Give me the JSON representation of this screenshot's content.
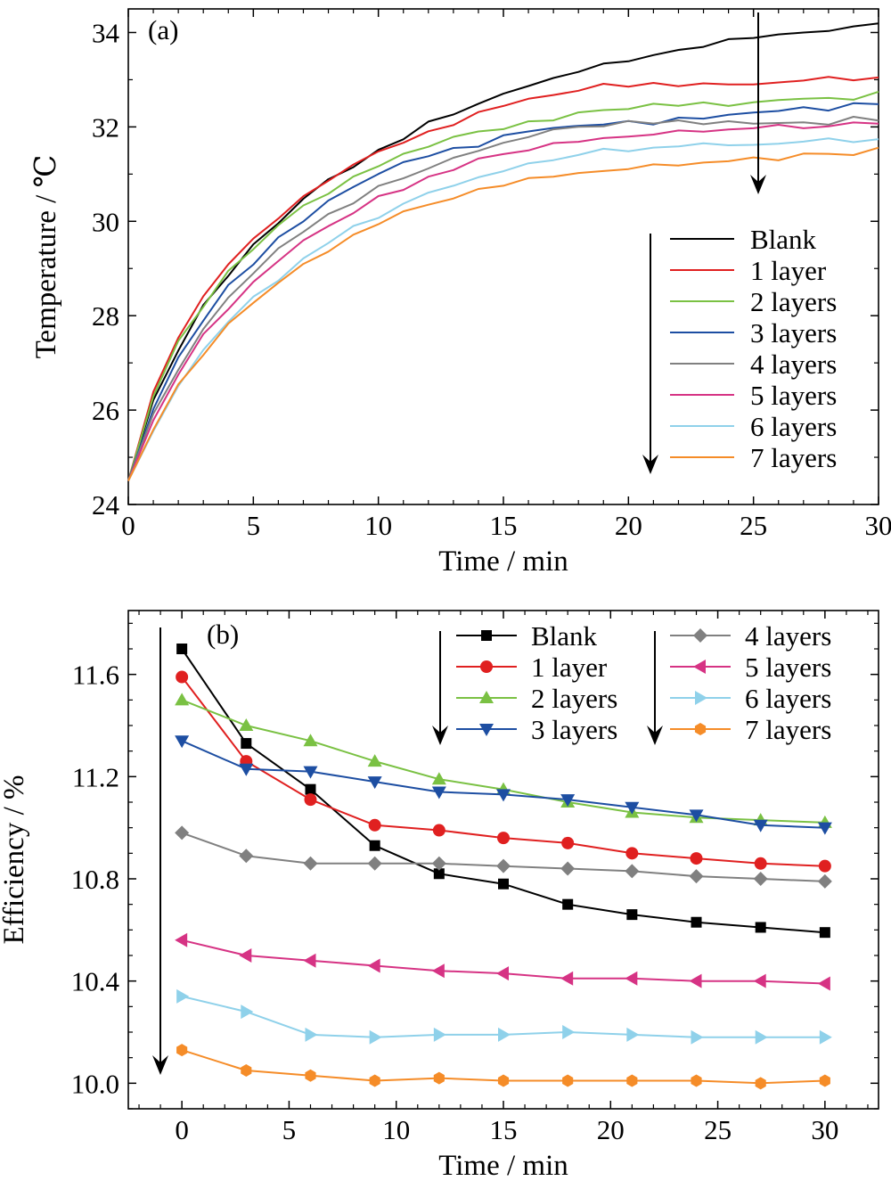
{
  "chart_data": [
    {
      "type": "line",
      "panel_label": "(a)",
      "xlabel": "Time / min",
      "ylabel": "Temperature / ℃",
      "xlim": [
        0,
        30
      ],
      "ylim": [
        24,
        34.5
      ],
      "xticks": [
        0,
        5,
        10,
        15,
        20,
        25,
        30
      ],
      "yticks": [
        24,
        26,
        28,
        30,
        32,
        34
      ],
      "legend_position": "bottom-right",
      "x": [
        0,
        1,
        2,
        3,
        4,
        5,
        6,
        7,
        8,
        9,
        10,
        11,
        12,
        13,
        14,
        15,
        16,
        17,
        18,
        19,
        20,
        21,
        22,
        23,
        24,
        25,
        26,
        27,
        28,
        29,
        30
      ],
      "series": [
        {
          "name": "Blank",
          "color": "#000000",
          "values": [
            24.5,
            26.2,
            27.3,
            28.2,
            28.9,
            29.5,
            30.0,
            30.5,
            30.9,
            31.2,
            31.5,
            31.8,
            32.1,
            32.3,
            32.5,
            32.7,
            32.9,
            33.0,
            33.2,
            33.3,
            33.4,
            33.5,
            33.6,
            33.7,
            33.8,
            33.9,
            33.9,
            34.0,
            34.0,
            34.1,
            34.2
          ]
        },
        {
          "name": "1 layer",
          "color": "#e02020",
          "values": [
            24.5,
            26.4,
            27.5,
            28.4,
            29.1,
            29.6,
            30.1,
            30.5,
            30.9,
            31.2,
            31.5,
            31.7,
            31.9,
            32.1,
            32.3,
            32.5,
            32.6,
            32.7,
            32.8,
            32.9,
            32.9,
            32.9,
            32.9,
            32.9,
            32.9,
            32.9,
            32.9,
            33.0,
            33.0,
            33.0,
            33.0
          ]
        },
        {
          "name": "2 layers",
          "color": "#7ac143",
          "values": [
            24.5,
            26.3,
            27.4,
            28.2,
            28.9,
            29.4,
            29.9,
            30.3,
            30.6,
            30.9,
            31.2,
            31.4,
            31.6,
            31.8,
            31.9,
            32.0,
            32.1,
            32.2,
            32.3,
            32.4,
            32.4,
            32.5,
            32.5,
            32.5,
            32.5,
            32.5,
            32.6,
            32.6,
            32.6,
            32.6,
            32.7
          ]
        },
        {
          "name": "3 layers",
          "color": "#1d4ea2",
          "values": [
            24.5,
            26.0,
            27.1,
            27.9,
            28.6,
            29.1,
            29.6,
            30.0,
            30.4,
            30.7,
            31.0,
            31.2,
            31.4,
            31.5,
            31.6,
            31.8,
            31.9,
            32.0,
            32.0,
            32.1,
            32.1,
            32.1,
            32.2,
            32.2,
            32.3,
            32.3,
            32.4,
            32.4,
            32.4,
            32.5,
            32.5
          ]
        },
        {
          "name": "4 layers",
          "color": "#808080",
          "values": [
            24.5,
            25.9,
            26.9,
            27.7,
            28.4,
            28.9,
            29.4,
            29.8,
            30.1,
            30.4,
            30.7,
            30.9,
            31.1,
            31.3,
            31.5,
            31.6,
            31.8,
            31.9,
            32.0,
            32.0,
            32.1,
            32.1,
            32.1,
            32.1,
            32.1,
            32.1,
            32.1,
            32.1,
            32.1,
            32.2,
            32.2
          ]
        },
        {
          "name": "5 layers",
          "color": "#d63384",
          "values": [
            24.5,
            25.8,
            26.8,
            27.6,
            28.2,
            28.7,
            29.2,
            29.6,
            29.9,
            30.2,
            30.5,
            30.7,
            30.9,
            31.1,
            31.3,
            31.4,
            31.5,
            31.6,
            31.7,
            31.7,
            31.8,
            31.8,
            31.9,
            31.9,
            31.9,
            32.0,
            32.0,
            32.0,
            32.0,
            32.1,
            32.1
          ]
        },
        {
          "name": "6 layers",
          "color": "#8fd1ea",
          "values": [
            24.5,
            25.6,
            26.5,
            27.3,
            27.9,
            28.4,
            28.8,
            29.2,
            29.6,
            29.9,
            30.1,
            30.4,
            30.6,
            30.8,
            30.9,
            31.1,
            31.2,
            31.3,
            31.4,
            31.5,
            31.5,
            31.5,
            31.6,
            31.6,
            31.6,
            31.6,
            31.6,
            31.7,
            31.7,
            31.7,
            31.7
          ]
        },
        {
          "name": "7 layers",
          "color": "#f58c28",
          "values": [
            24.5,
            25.6,
            26.5,
            27.2,
            27.8,
            28.3,
            28.7,
            29.1,
            29.4,
            29.7,
            30.0,
            30.2,
            30.4,
            30.5,
            30.7,
            30.8,
            30.9,
            31.0,
            31.0,
            31.1,
            31.1,
            31.2,
            31.2,
            31.2,
            31.3,
            31.3,
            31.3,
            31.4,
            31.4,
            31.4,
            31.5
          ]
        }
      ]
    },
    {
      "type": "line",
      "panel_label": "(b)",
      "xlabel": "Time / min",
      "ylabel": "Efficiency / %",
      "xlim": [
        -2.5,
        32.5
      ],
      "ylim": [
        9.9,
        11.85
      ],
      "xticks": [
        0,
        5,
        10,
        15,
        20,
        25,
        30
      ],
      "yticks": [
        10.0,
        10.4,
        10.8,
        11.2,
        11.6
      ],
      "ytick_labels": [
        "10.0",
        "10.4",
        "10.8",
        "11.2",
        "11.6"
      ],
      "legend_position": "top-right",
      "x": [
        0,
        3,
        6,
        9,
        12,
        15,
        18,
        21,
        24,
        27,
        30
      ],
      "series": [
        {
          "name": "Blank",
          "color": "#000000",
          "marker": "square",
          "values": [
            11.7,
            11.33,
            11.15,
            10.93,
            10.82,
            10.78,
            10.7,
            10.66,
            10.63,
            10.61,
            10.59
          ]
        },
        {
          "name": "1 layer",
          "color": "#e02020",
          "marker": "circle",
          "values": [
            11.59,
            11.26,
            11.11,
            11.01,
            10.99,
            10.96,
            10.94,
            10.9,
            10.88,
            10.86,
            10.85
          ]
        },
        {
          "name": "2 layers",
          "color": "#7ac143",
          "marker": "triangle-up",
          "values": [
            11.5,
            11.4,
            11.34,
            11.26,
            11.19,
            11.15,
            11.1,
            11.06,
            11.04,
            11.03,
            11.02
          ]
        },
        {
          "name": "3 layers",
          "color": "#1d4ea2",
          "marker": "triangle-down",
          "values": [
            11.34,
            11.23,
            11.22,
            11.18,
            11.14,
            11.13,
            11.11,
            11.08,
            11.05,
            11.01,
            11.0
          ]
        },
        {
          "name": "4 layers",
          "color": "#808080",
          "marker": "diamond",
          "values": [
            10.98,
            10.89,
            10.86,
            10.86,
            10.86,
            10.85,
            10.84,
            10.83,
            10.81,
            10.8,
            10.79
          ]
        },
        {
          "name": "5 layers",
          "color": "#d63384",
          "marker": "triangle-left",
          "values": [
            10.56,
            10.5,
            10.48,
            10.46,
            10.44,
            10.43,
            10.41,
            10.41,
            10.4,
            10.4,
            10.39
          ]
        },
        {
          "name": "6 layers",
          "color": "#8fd1ea",
          "marker": "triangle-right",
          "values": [
            10.34,
            10.28,
            10.19,
            10.18,
            10.19,
            10.19,
            10.2,
            10.19,
            10.18,
            10.18,
            10.18
          ]
        },
        {
          "name": "7 layers",
          "color": "#f58c28",
          "marker": "hexagon",
          "values": [
            10.13,
            10.05,
            10.03,
            10.01,
            10.02,
            10.01,
            10.01,
            10.01,
            10.01,
            10.0,
            10.01
          ]
        }
      ]
    }
  ]
}
